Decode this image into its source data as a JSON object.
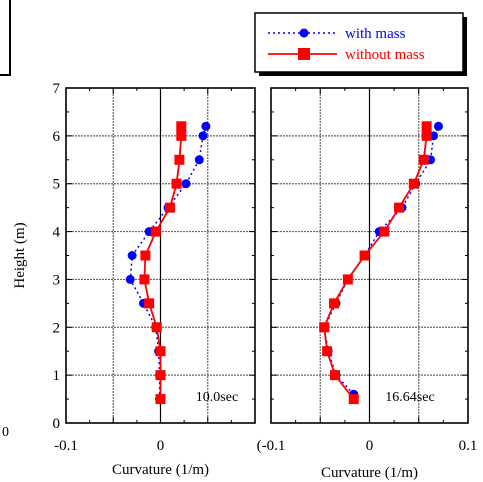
{
  "chart_data": [
    {
      "type": "line",
      "annotation": "10.0sec",
      "xlabel": "Curvature (1/m)",
      "ylabel": "Height (m)",
      "xlim": [
        -0.1,
        0.1
      ],
      "ylim": [
        0,
        7
      ],
      "x_ticks": [
        "-0.1",
        "0",
        ""
      ],
      "y_ticks": [
        "0",
        "1",
        "2",
        "3",
        "4",
        "5",
        "6",
        "7"
      ],
      "grid": true,
      "series": [
        {
          "name": "with mass",
          "color": "#0000ff",
          "line": "dotted",
          "marker": "circle",
          "points": [
            {
              "x": -0.001,
              "y": 0.5
            },
            {
              "x": -0.001,
              "y": 1.0
            },
            {
              "x": -0.002,
              "y": 1.5
            },
            {
              "x": -0.005,
              "y": 2.0
            },
            {
              "x": -0.018,
              "y": 2.5
            },
            {
              "x": -0.032,
              "y": 3.0
            },
            {
              "x": -0.03,
              "y": 3.5
            },
            {
              "x": -0.012,
              "y": 4.0
            },
            {
              "x": 0.008,
              "y": 4.5
            },
            {
              "x": 0.027,
              "y": 5.0
            },
            {
              "x": 0.041,
              "y": 5.5
            },
            {
              "x": 0.045,
              "y": 6.0
            },
            {
              "x": 0.048,
              "y": 6.2
            }
          ]
        },
        {
          "name": "without mass",
          "color": "#ff0000",
          "line": "solid",
          "marker": "square",
          "points": [
            {
              "x": 0.0,
              "y": 0.5
            },
            {
              "x": 0.0,
              "y": 1.0
            },
            {
              "x": 0.0,
              "y": 1.5
            },
            {
              "x": -0.004,
              "y": 2.0
            },
            {
              "x": -0.012,
              "y": 2.5
            },
            {
              "x": -0.017,
              "y": 3.0
            },
            {
              "x": -0.016,
              "y": 3.5
            },
            {
              "x": -0.005,
              "y": 4.0
            },
            {
              "x": 0.01,
              "y": 4.5
            },
            {
              "x": 0.017,
              "y": 5.0
            },
            {
              "x": 0.02,
              "y": 5.5
            },
            {
              "x": 0.022,
              "y": 6.0
            },
            {
              "x": 0.022,
              "y": 6.2
            }
          ]
        }
      ]
    },
    {
      "type": "line",
      "annotation": "16.64sec",
      "xlabel": "Curvature (1/m)",
      "ylabel": "",
      "xlim": [
        -0.1,
        0.1
      ],
      "ylim": [
        0,
        7
      ],
      "x_ticks": [
        "(-0.1",
        "0",
        "0.1"
      ],
      "y_ticks": [],
      "grid": true,
      "series": [
        {
          "name": "with mass",
          "color": "#0000ff",
          "line": "dotted",
          "marker": "circle",
          "points": [
            {
              "x": -0.016,
              "y": 0.6
            },
            {
              "x": -0.034,
              "y": 1.0
            },
            {
              "x": -0.042,
              "y": 1.5
            },
            {
              "x": -0.046,
              "y": 2.0
            },
            {
              "x": -0.034,
              "y": 2.5
            },
            {
              "x": -0.022,
              "y": 3.0
            },
            {
              "x": -0.005,
              "y": 3.5
            },
            {
              "x": 0.01,
              "y": 4.0
            },
            {
              "x": 0.033,
              "y": 4.5
            },
            {
              "x": 0.047,
              "y": 5.0
            },
            {
              "x": 0.062,
              "y": 5.5
            },
            {
              "x": 0.065,
              "y": 6.0
            },
            {
              "x": 0.07,
              "y": 6.2
            }
          ]
        },
        {
          "name": "without mass",
          "color": "#ff0000",
          "line": "solid",
          "marker": "square",
          "points": [
            {
              "x": -0.016,
              "y": 0.5
            },
            {
              "x": -0.035,
              "y": 1.0
            },
            {
              "x": -0.043,
              "y": 1.5
            },
            {
              "x": -0.046,
              "y": 2.0
            },
            {
              "x": -0.036,
              "y": 2.5
            },
            {
              "x": -0.022,
              "y": 3.0
            },
            {
              "x": -0.005,
              "y": 3.5
            },
            {
              "x": 0.015,
              "y": 4.0
            },
            {
              "x": 0.03,
              "y": 4.5
            },
            {
              "x": 0.045,
              "y": 5.0
            },
            {
              "x": 0.055,
              "y": 5.5
            },
            {
              "x": 0.058,
              "y": 6.0
            },
            {
              "x": 0.058,
              "y": 6.2
            }
          ]
        }
      ]
    }
  ],
  "legend": {
    "position": "top-right",
    "items": [
      {
        "label": "with mass",
        "color": "#0000ff",
        "line": "dotted",
        "marker": "circle"
      },
      {
        "label": "without mass",
        "color": "#ff0000",
        "line": "solid",
        "marker": "square"
      }
    ]
  },
  "edge_text": {
    "left_bottom": "0"
  }
}
